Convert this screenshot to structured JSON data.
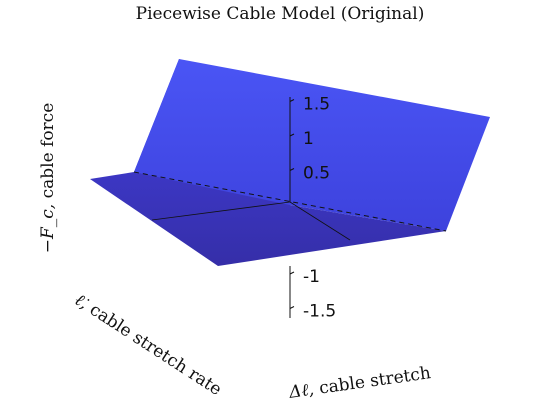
{
  "chart_data": {
    "type": "surface",
    "title": "Piecewise Cable Model (Original)",
    "zlabel": {
      "symbol": "−F_c,",
      "text": "cable force"
    },
    "xlabel": {
      "symbol": "ℓ̇,",
      "text": "cable stretch rate"
    },
    "ylabel": {
      "symbol": "Δℓ,",
      "text": "cable stretch"
    },
    "z_ticks": [
      -1.5,
      -1,
      0.5,
      1,
      1.5
    ],
    "z_tick_labels": [
      "-1.5",
      "-1",
      "0.5",
      "1",
      "1.5"
    ],
    "surface_color": "#3d3de6",
    "low_face_color": "#3a32b8",
    "grid": false,
    "box": false,
    "has_dashed_crease": true
  }
}
